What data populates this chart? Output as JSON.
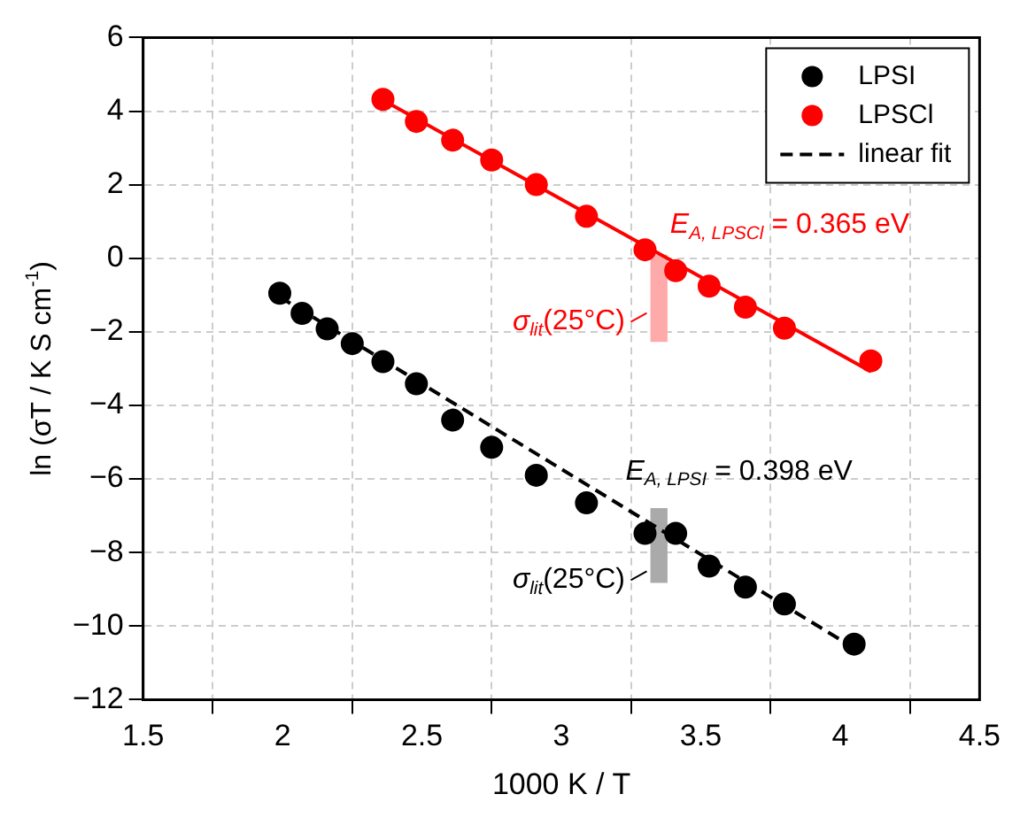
{
  "chart_data": {
    "type": "scatter",
    "xlabel": "1000 K / T",
    "ylabel": "ln (σT / K S cm$^{-1}$)",
    "xlim": [
      1.5,
      4.5
    ],
    "xticks": [
      1.5,
      2,
      2.5,
      3,
      3.5,
      4,
      4.5
    ],
    "ylim": [
      -12,
      6
    ],
    "yticks": [
      {
        "value": -12,
        "label": "−12"
      },
      {
        "value": -10,
        "label": "−10"
      },
      {
        "value": -8,
        "label": "−8"
      },
      {
        "value": -6,
        "label": "−6"
      },
      {
        "value": -4,
        "label": "−4"
      },
      {
        "value": -2,
        "label": "−2"
      },
      0,
      2,
      4,
      6
    ],
    "grid": true,
    "legend": "top right",
    "series": [
      {
        "name": "LPSI",
        "marker": "circle",
        "color": "#000000",
        "x": [
          1.99,
          2.07,
          2.16,
          2.25,
          2.36,
          2.48,
          2.61,
          2.75,
          2.91,
          3.09,
          3.3,
          3.41,
          3.53,
          3.66,
          3.8,
          4.05
        ],
        "values": [
          -0.95,
          -1.5,
          -1.92,
          -2.32,
          -2.81,
          -3.41,
          -4.4,
          -5.14,
          -5.9,
          -6.65,
          -7.48,
          -7.48,
          -8.37,
          -8.94,
          -9.4,
          -10.49
        ]
      },
      {
        "name": "LPSCl",
        "marker": "circle",
        "color": "#ff0000",
        "x": [
          2.36,
          2.48,
          2.61,
          2.75,
          2.91,
          3.09,
          3.3,
          3.41,
          3.53,
          3.66,
          3.8,
          4.11
        ],
        "values": [
          4.32,
          3.72,
          3.21,
          2.67,
          2.0,
          1.14,
          0.23,
          -0.34,
          -0.76,
          -1.33,
          -1.9,
          -2.79
        ]
      },
      {
        "type": "bar",
        "color": "#ffaaaa",
        "x": [
          3.35
        ],
        "base": [
          0.08
        ],
        "values": [
          -2.34
        ]
      },
      {
        "type": "bar",
        "color": "#aaaaaa",
        "x": [
          3.35
        ],
        "base": [
          -6.81
        ],
        "values": [
          -2.0
        ]
      },
      {
        "type": "line",
        "marker": "none",
        "line_style": "solid",
        "color": "#ff0000",
        "x": [
          2.36,
          4.11
        ],
        "values": [
          4.3,
          -3.08
        ]
      },
      {
        "name": "linear fit",
        "type": "line",
        "marker": "none",
        "line_style": "dashed",
        "color": "#000000",
        "x": [
          1.99,
          4.05
        ],
        "values": [
          -1.05,
          -10.6
        ]
      }
    ],
    "annotations": [
      "E$_{A, LPSCl}$ = 0.365 eV",
      "σ$_{lit}$(25°C)",
      "E$_{A, LPSI}$ = 0.398 eV",
      "σ$_{lit}$(25°C)"
    ]
  }
}
